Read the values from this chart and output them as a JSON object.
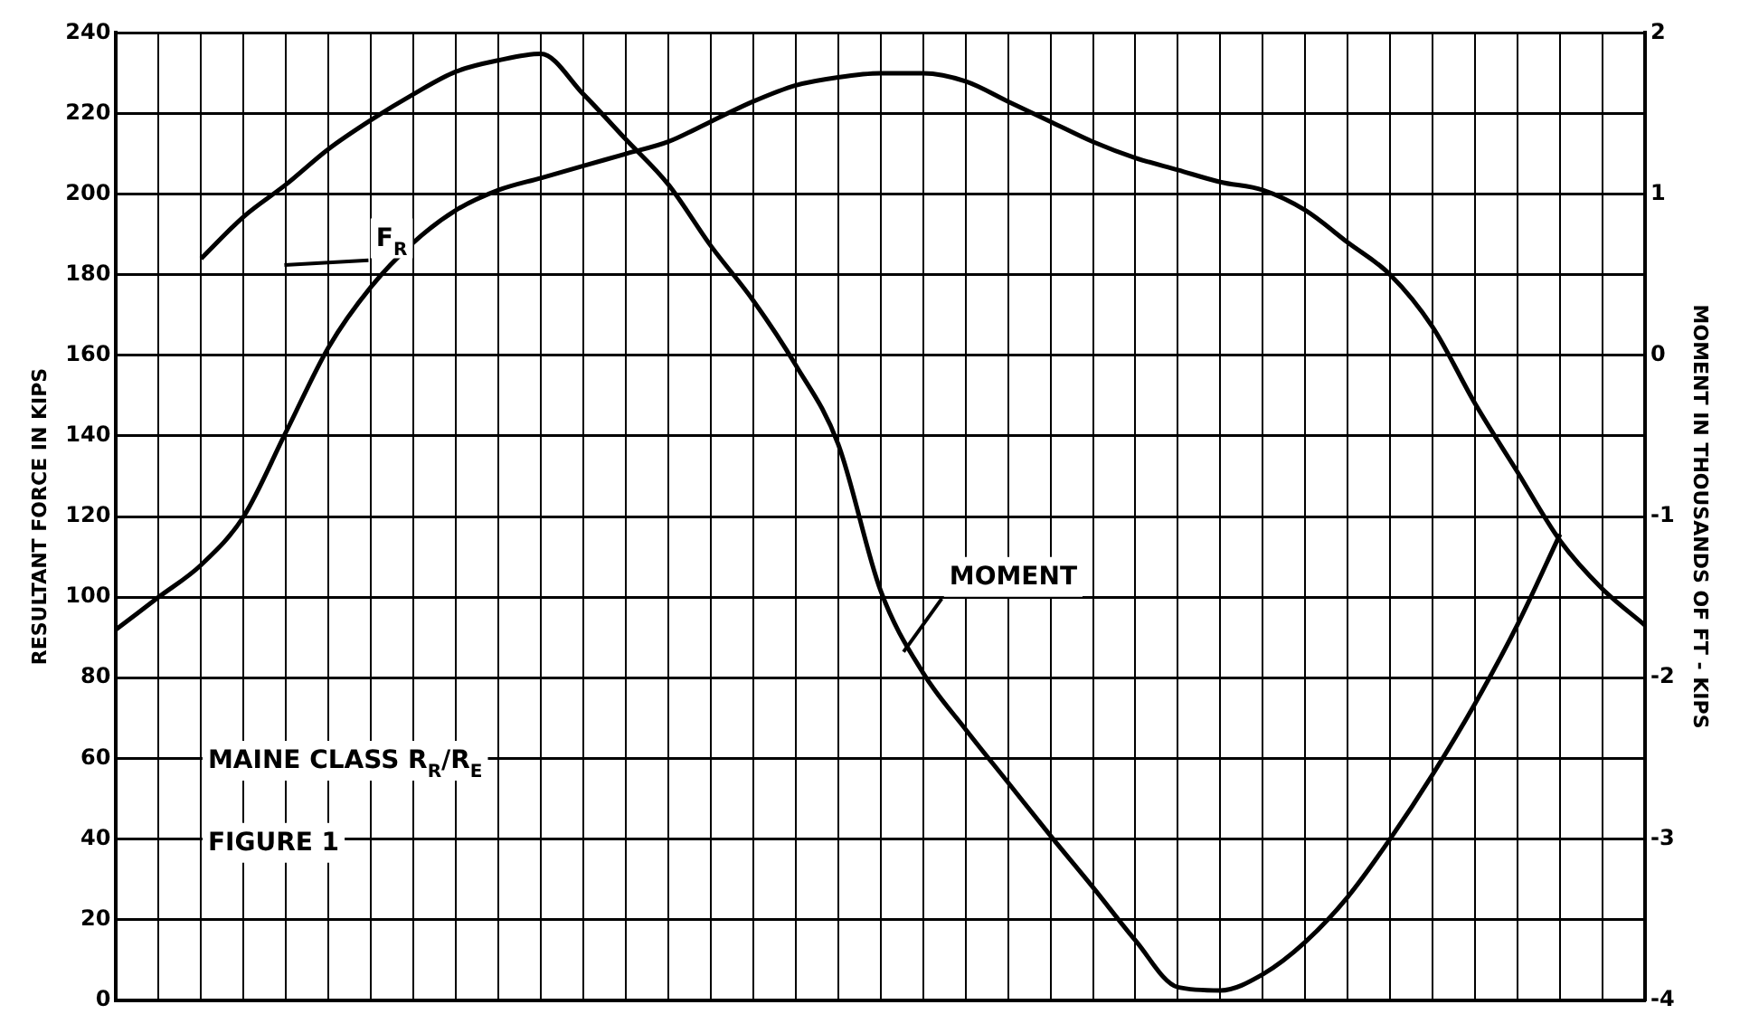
{
  "chart_data": {
    "type": "line",
    "ylabel": "RESULTANT FORCE IN KIPS",
    "y2label": "MOMENT IN THOUSANDS OF FT - KIPS",
    "categories": [
      null,
      null,
      null,
      null,
      null,
      null,
      null,
      null,
      null,
      null,
      null,
      null,
      null,
      null,
      null,
      null,
      null,
      null,
      null,
      null,
      null,
      null,
      null,
      null,
      null,
      null,
      null,
      null,
      null,
      null,
      null,
      null,
      null,
      null,
      null,
      null,
      null
    ],
    "series": [
      {
        "color": "#000000",
        "values": [
          92,
          100,
          108,
          120,
          141,
          162,
          177,
          188,
          196,
          201,
          204,
          207,
          210,
          213,
          218,
          223,
          227,
          229,
          230,
          230,
          228,
          223,
          218,
          213,
          209,
          206,
          203,
          201,
          196,
          188,
          180,
          167,
          148,
          131,
          114,
          102,
          93
        ]
      },
      {
        "color": "#000000",
        "axis": "y2",
        "values": [
          null,
          null,
          0.6,
          0.86,
          1.06,
          1.28,
          1.46,
          1.62,
          1.76,
          1.83,
          1.87,
          1.62,
          1.34,
          1.06,
          0.68,
          0.34,
          -0.06,
          -0.55,
          -1.46,
          -1.97,
          -2.32,
          -2.65,
          -2.98,
          -3.3,
          -3.63,
          -3.92,
          -3.94,
          -3.84,
          -3.64,
          -3.36,
          -3.0,
          -2.6,
          -2.16,
          -1.67,
          -1.11,
          null,
          null
        ]
      }
    ],
    "ylim": [
      0,
      240
    ],
    "yticks": [
      0,
      20,
      40,
      60,
      80,
      100,
      120,
      140,
      160,
      180,
      200,
      220,
      240
    ],
    "y2lim": [
      -4,
      2
    ],
    "y2ticks": [
      -4,
      -3,
      -2,
      -1,
      0,
      1,
      2
    ],
    "tick_labels": "y",
    "grid": true,
    "legend": false,
    "annotations": [
      "F$_{R}$",
      "MOMENT",
      "MAINE CLASS R$_{R}$/R$_{E}$",
      "FIGURE 1"
    ]
  }
}
